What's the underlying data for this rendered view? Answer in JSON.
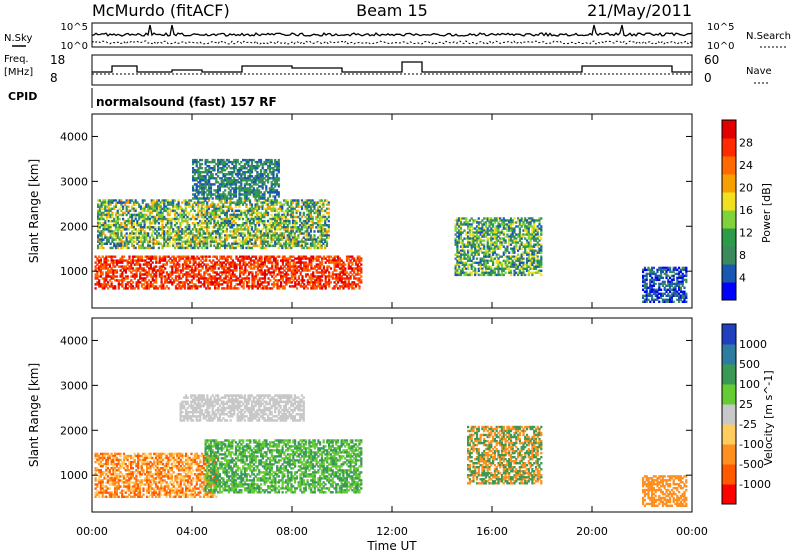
{
  "header": {
    "station": "McMurdo (fitACF)",
    "beam": "Beam 15",
    "date": "21/May/2011"
  },
  "strip_labels": {
    "nsky": "N.Sky",
    "nsearch": "N.Search",
    "freq": "Freq.",
    "freq_unit": "[MHz]",
    "nave": "Nave",
    "cpid": "CPID",
    "cpid_value": "normalsound (fast) 157 RF"
  },
  "strip_ticks": {
    "noise_left": [
      "10^5",
      "10^0"
    ],
    "noise_right": [
      "10^5",
      "10^0"
    ],
    "freq_left": [
      "18",
      "8"
    ],
    "freq_right": [
      "60",
      "0"
    ]
  },
  "colors": {
    "power": [
      "#0000ff",
      "#1a57b0",
      "#3a8a5c",
      "#2e9b4a",
      "#7fd23a",
      "#f0e020",
      "#f5a000",
      "#ff6a00",
      "#ff2a00",
      "#e00000"
    ],
    "velocity": [
      "#ff0000",
      "#ff5a00",
      "#ff9020",
      "#ffcc60",
      "#c8c8c8",
      "#66cc33",
      "#3a9a55",
      "#2e7da0",
      "#2040c0"
    ]
  },
  "chart_data": [
    {
      "type": "heatmap",
      "title": "",
      "xlabel": "",
      "ylabel": "Slant Range [km]",
      "x_ticks": [
        "00:00",
        "04:00",
        "08:00",
        "12:00",
        "16:00",
        "20:00",
        "00:00"
      ],
      "y_ticks": [
        1000,
        2000,
        3000,
        4000
      ],
      "xlim_hours": [
        0,
        24
      ],
      "ylim_km": [
        180,
        4500
      ],
      "colorbar": {
        "label": "Power [dB]",
        "ticks": [
          4,
          8,
          12,
          16,
          20,
          24,
          28
        ]
      },
      "regions": [
        {
          "t0": 0.1,
          "t1": 10.8,
          "r0": 600,
          "r1": 1350,
          "value": "strong power (red)"
        },
        {
          "t0": 0.2,
          "t1": 9.5,
          "r0": 1500,
          "r1": 2600,
          "value": "mixed 8-24 dB"
        },
        {
          "t0": 4.0,
          "t1": 7.5,
          "r0": 2600,
          "r1": 3500,
          "value": "sparse 4-12 dB"
        },
        {
          "t0": 14.5,
          "t1": 18.0,
          "r0": 900,
          "r1": 2200,
          "value": "moderate 8-20 dB"
        },
        {
          "t0": 22.0,
          "t1": 23.8,
          "r0": 300,
          "r1": 1100,
          "value": "weak 4-12 dB"
        }
      ]
    },
    {
      "type": "heatmap",
      "title": "",
      "xlabel": "Time UT",
      "ylabel": "Slant Range [km]",
      "x_ticks": [
        "00:00",
        "04:00",
        "08:00",
        "12:00",
        "16:00",
        "20:00",
        "00:00"
      ],
      "y_ticks": [
        1000,
        2000,
        3000,
        4000
      ],
      "xlim_hours": [
        0,
        24
      ],
      "ylim_km": [
        180,
        4500
      ],
      "colorbar": {
        "label": "Velocity [m s^-1]",
        "ticks": [
          -1000,
          -500,
          -100,
          -25,
          25,
          100,
          500,
          1000
        ]
      },
      "regions": [
        {
          "t0": 0.1,
          "t1": 5.0,
          "r0": 500,
          "r1": 1500,
          "value": "-100 to -500 m/s (orange)"
        },
        {
          "t0": 4.5,
          "t1": 10.8,
          "r0": 600,
          "r1": 1800,
          "value": "100 to 500 m/s (green)"
        },
        {
          "t0": 3.5,
          "t1": 8.5,
          "r0": 2200,
          "r1": 2800,
          "value": "-25 to 25 m/s (gray)"
        },
        {
          "t0": 15.0,
          "t1": 18.0,
          "r0": 800,
          "r1": 2100,
          "value": "mixed"
        },
        {
          "t0": 22.0,
          "t1": 23.8,
          "r0": 300,
          "r1": 1000,
          "value": "-100 m/s"
        }
      ]
    }
  ]
}
